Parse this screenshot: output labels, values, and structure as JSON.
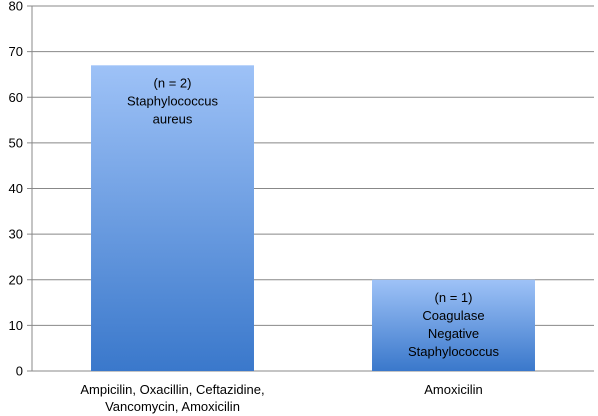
{
  "chart_data": {
    "type": "bar",
    "title": "",
    "xlabel": "",
    "ylabel": "",
    "ylim": [
      0,
      80
    ],
    "yticks": [
      0,
      10,
      20,
      30,
      40,
      50,
      60,
      70,
      80
    ],
    "grid": true,
    "categories": [
      [
        "Ampicilin, Oxacillin, Ceftazidine,",
        "Vancomycin, Amoxicilin"
      ],
      [
        "Amoxicilin"
      ]
    ],
    "values": [
      67,
      20
    ],
    "bar_labels": [
      [
        "(n = 2)",
        "Staphylococcus",
        "aureus"
      ],
      [
        "(n = 1)",
        "Coagulase",
        "Negative",
        "Staphylococcus"
      ]
    ],
    "colors": {
      "bar_top": "#9EC2F7",
      "bar_bottom": "#3A78CB",
      "axis": "#888888",
      "grid": "#888888"
    }
  }
}
